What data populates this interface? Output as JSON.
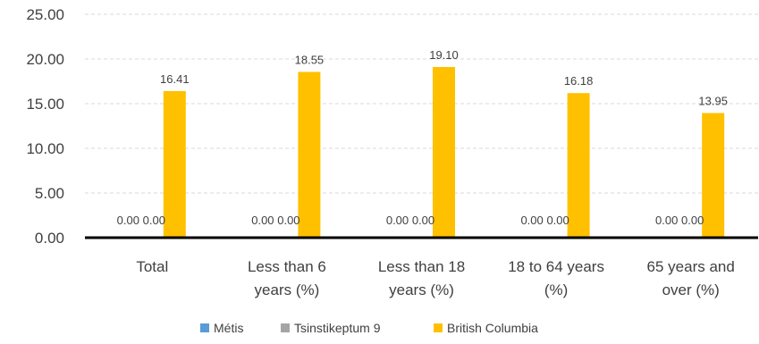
{
  "chart_data": {
    "type": "bar",
    "categories": [
      [
        "Total"
      ],
      [
        "Less than 6",
        "years (%)"
      ],
      [
        "Less than 18",
        "years (%)"
      ],
      [
        "18 to 64 years",
        "(%)"
      ],
      [
        "65 years and",
        "over (%)"
      ]
    ],
    "series": [
      {
        "name": "Métis",
        "values": [
          0.0,
          0.0,
          0.0,
          0.0,
          0.0
        ],
        "color": "#5B9BD5"
      },
      {
        "name": "Tsinstikeptum  9",
        "values": [
          0.0,
          0.0,
          0.0,
          0.0,
          0.0
        ],
        "color": "#A5A5A5"
      },
      {
        "name": "British Columbia",
        "values": [
          16.41,
          18.55,
          19.1,
          16.18,
          13.95
        ],
        "color": "#FFC000"
      }
    ],
    "data_labels": [
      [
        "0.00",
        "0.00",
        "16.41"
      ],
      [
        "0.00",
        "0.00",
        "18.55"
      ],
      [
        "0.00",
        "0.00",
        "19.10"
      ],
      [
        "0.00",
        "0.00",
        "16.18"
      ],
      [
        "0.00",
        "0.00",
        "13.95"
      ]
    ],
    "yticks": [
      "0.00",
      "5.00",
      "10.00",
      "15.00",
      "20.00",
      "25.00"
    ],
    "ylim": [
      0,
      25
    ],
    "grid": true,
    "legend_position": "bottom"
  }
}
